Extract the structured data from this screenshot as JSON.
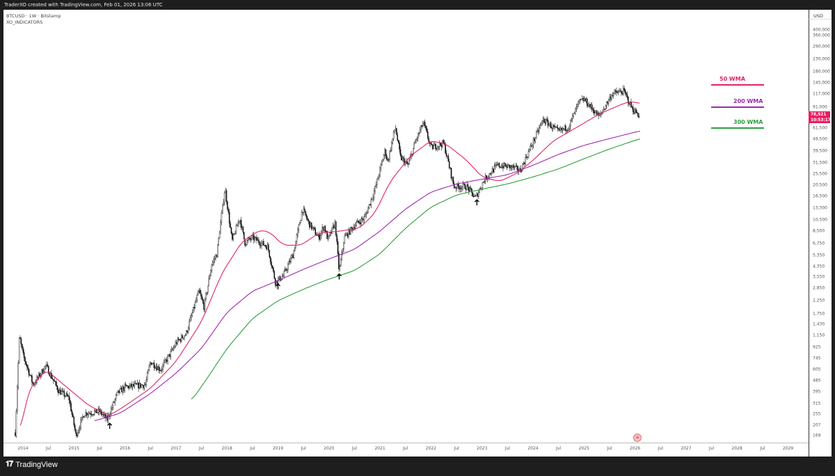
{
  "header": {
    "credit": "TraderXO created with TradingView.com, Feb 01, 2026 13:06 UTC"
  },
  "pane": {
    "symbol": "BTCUSD · 1W · Bitstamp",
    "indicator": "XO_INDICATORS"
  },
  "footer": {
    "brand": "TradingView",
    "logo_icon": "tradingview-logo-icon"
  },
  "price_label": {
    "price": "78,521",
    "countdown": "10:53:17",
    "color": "#e91e63"
  },
  "chart_data": {
    "type": "candlestick",
    "title": "BTCUSD 1W Bitstamp",
    "yscale": "log",
    "ylabel": "USD",
    "ylim": [
      160,
      420000
    ],
    "xlim": [
      2013.75,
      2029.5
    ],
    "yticks": [
      400000,
      360000,
      290000,
      230000,
      180000,
      145000,
      117000,
      91000,
      61500,
      49500,
      39500,
      31500,
      25500,
      20500,
      16500,
      13300,
      10500,
      8500,
      6750,
      5350,
      4350,
      3550,
      2850,
      2250,
      1750,
      1430,
      1150,
      925,
      745,
      605,
      485,
      395,
      315,
      255,
      207,
      169
    ],
    "xticks": [
      [
        "2014",
        2014
      ],
      [
        "Jul",
        2014.5
      ],
      [
        "2015",
        2015
      ],
      [
        "Jul",
        2015.5
      ],
      [
        "2016",
        2016
      ],
      [
        "Jul",
        2016.5
      ],
      [
        "2017",
        2017
      ],
      [
        "Jul",
        2017.5
      ],
      [
        "2018",
        2018
      ],
      [
        "Jul",
        2018.5
      ],
      [
        "2019",
        2019
      ],
      [
        "Jul",
        2019.5
      ],
      [
        "2020",
        2020
      ],
      [
        "Jul",
        2020.5
      ],
      [
        "2021",
        2021
      ],
      [
        "Jul",
        2021.5
      ],
      [
        "2022",
        2022
      ],
      [
        "Jul",
        2022.5
      ],
      [
        "2023",
        2023
      ],
      [
        "Jul",
        2023.5
      ],
      [
        "2024",
        2024
      ],
      [
        "Jul",
        2024.5
      ],
      [
        "2025",
        2025
      ],
      [
        "Jul",
        2025.5
      ],
      [
        "2026",
        2026
      ],
      [
        "Jul",
        2026.5
      ],
      [
        "2027",
        2027
      ],
      [
        "Jul",
        2027.5
      ],
      [
        "2028",
        2028
      ],
      [
        "Jul",
        2028.5
      ],
      [
        "2029",
        2029
      ]
    ],
    "price_path": [
      [
        2013.85,
        180
      ],
      [
        2013.93,
        1150
      ],
      [
        2014.0,
        800
      ],
      [
        2014.1,
        600
      ],
      [
        2014.2,
        450
      ],
      [
        2014.45,
        650
      ],
      [
        2014.7,
        400
      ],
      [
        2014.9,
        350
      ],
      [
        2015.04,
        170
      ],
      [
        2015.2,
        260
      ],
      [
        2015.5,
        270
      ],
      [
        2015.65,
        230
      ],
      [
        2015.85,
        380
      ],
      [
        2016.0,
        430
      ],
      [
        2016.4,
        450
      ],
      [
        2016.5,
        700
      ],
      [
        2016.7,
        600
      ],
      [
        2016.95,
        900
      ],
      [
        2017.0,
        1000
      ],
      [
        2017.2,
        1200
      ],
      [
        2017.45,
        2700
      ],
      [
        2017.55,
        2000
      ],
      [
        2017.7,
        4500
      ],
      [
        2017.8,
        5500
      ],
      [
        2017.96,
        19500
      ],
      [
        2018.1,
        7000
      ],
      [
        2018.25,
        11000
      ],
      [
        2018.35,
        6800
      ],
      [
        2018.5,
        7500
      ],
      [
        2018.8,
        6300
      ],
      [
        2018.95,
        3200
      ],
      [
        2019.1,
        3600
      ],
      [
        2019.3,
        5500
      ],
      [
        2019.48,
        13000
      ],
      [
        2019.6,
        10000
      ],
      [
        2019.8,
        7500
      ],
      [
        2019.9,
        9500
      ],
      [
        2019.98,
        7200
      ],
      [
        2020.12,
        10000
      ],
      [
        2020.2,
        3900
      ],
      [
        2020.3,
        7500
      ],
      [
        2020.5,
        9500
      ],
      [
        2020.7,
        11000
      ],
      [
        2020.9,
        19000
      ],
      [
        2021.1,
        40000
      ],
      [
        2021.15,
        32000
      ],
      [
        2021.3,
        63000
      ],
      [
        2021.4,
        35000
      ],
      [
        2021.55,
        30000
      ],
      [
        2021.7,
        48000
      ],
      [
        2021.85,
        68000
      ],
      [
        2022.0,
        42000
      ],
      [
        2022.25,
        46000
      ],
      [
        2022.45,
        20000
      ],
      [
        2022.7,
        20000
      ],
      [
        2022.87,
        16000
      ],
      [
        2023.05,
        23000
      ],
      [
        2023.3,
        30000
      ],
      [
        2023.6,
        29000
      ],
      [
        2023.75,
        27000
      ],
      [
        2023.95,
        42000
      ],
      [
        2024.2,
        72000
      ],
      [
        2024.5,
        57000
      ],
      [
        2024.7,
        63000
      ],
      [
        2024.9,
        100000
      ],
      [
        2025.0,
        106000
      ],
      [
        2025.3,
        76000
      ],
      [
        2025.55,
        118000
      ],
      [
        2025.78,
        124000
      ],
      [
        2025.95,
        88000
      ],
      [
        2026.08,
        78500
      ]
    ],
    "series": [
      {
        "name": "50 WMA",
        "color": "#e0245e",
        "points": [
          [
            2013.95,
            180
          ],
          [
            2014.1,
            400
          ],
          [
            2014.45,
            600
          ],
          [
            2014.8,
            450
          ],
          [
            2015.3,
            300
          ],
          [
            2015.7,
            250
          ],
          [
            2016.0,
            300
          ],
          [
            2016.5,
            420
          ],
          [
            2017.0,
            700
          ],
          [
            2017.5,
            1500
          ],
          [
            2017.9,
            3800
          ],
          [
            2018.3,
            7000
          ],
          [
            2018.65,
            8700
          ],
          [
            2018.85,
            8300
          ],
          [
            2019.1,
            6500
          ],
          [
            2019.45,
            6500
          ],
          [
            2019.8,
            8200
          ],
          [
            2020.2,
            8500
          ],
          [
            2020.6,
            9000
          ],
          [
            2020.9,
            12000
          ],
          [
            2021.2,
            22000
          ],
          [
            2021.6,
            36000
          ],
          [
            2022.0,
            48000
          ],
          [
            2022.3,
            45000
          ],
          [
            2022.7,
            33000
          ],
          [
            2023.0,
            24000
          ],
          [
            2023.35,
            22000
          ],
          [
            2023.7,
            26000
          ],
          [
            2024.0,
            33000
          ],
          [
            2024.4,
            48000
          ],
          [
            2024.8,
            60000
          ],
          [
            2025.3,
            80000
          ],
          [
            2025.7,
            95000
          ],
          [
            2025.9,
            102000
          ],
          [
            2026.1,
            98000
          ]
        ]
      },
      {
        "name": "200 WMA",
        "color": "#9c27b0",
        "points": [
          [
            2015.4,
            225
          ],
          [
            2015.9,
            260
          ],
          [
            2016.5,
            380
          ],
          [
            2017.0,
            560
          ],
          [
            2017.5,
            900
          ],
          [
            2018.0,
            1800
          ],
          [
            2018.5,
            2700
          ],
          [
            2019.0,
            3300
          ],
          [
            2019.5,
            4100
          ],
          [
            2020.0,
            5000
          ],
          [
            2020.5,
            6000
          ],
          [
            2021.0,
            8500
          ],
          [
            2021.5,
            13000
          ],
          [
            2022.0,
            18000
          ],
          [
            2022.5,
            21000
          ],
          [
            2023.0,
            23000
          ],
          [
            2023.5,
            25000
          ],
          [
            2024.0,
            30000
          ],
          [
            2024.5,
            37000
          ],
          [
            2025.0,
            44000
          ],
          [
            2025.5,
            50000
          ],
          [
            2026.1,
            58000
          ]
        ]
      },
      {
        "name": "300 WMA",
        "color": "#2e9e3e",
        "points": [
          [
            2017.3,
            330
          ],
          [
            2017.6,
            500
          ],
          [
            2018.0,
            900
          ],
          [
            2018.5,
            1600
          ],
          [
            2019.0,
            2250
          ],
          [
            2019.5,
            2800
          ],
          [
            2020.0,
            3400
          ],
          [
            2020.5,
            4000
          ],
          [
            2021.0,
            5500
          ],
          [
            2021.5,
            9000
          ],
          [
            2022.0,
            13500
          ],
          [
            2022.5,
            17000
          ],
          [
            2023.0,
            19000
          ],
          [
            2023.5,
            21000
          ],
          [
            2024.0,
            24000
          ],
          [
            2024.5,
            28000
          ],
          [
            2025.0,
            34000
          ],
          [
            2025.5,
            41000
          ],
          [
            2026.1,
            50000
          ]
        ]
      }
    ],
    "annotations": {
      "arrows": [
        [
          2015.7,
          215
        ],
        [
          2019.0,
          3100
        ],
        [
          2020.2,
          3750
        ],
        [
          2022.9,
          15500
        ]
      ]
    },
    "legend": {
      "placement": "right",
      "entries": [
        "50 WMA",
        "200 WMA",
        "300 WMA"
      ]
    }
  }
}
